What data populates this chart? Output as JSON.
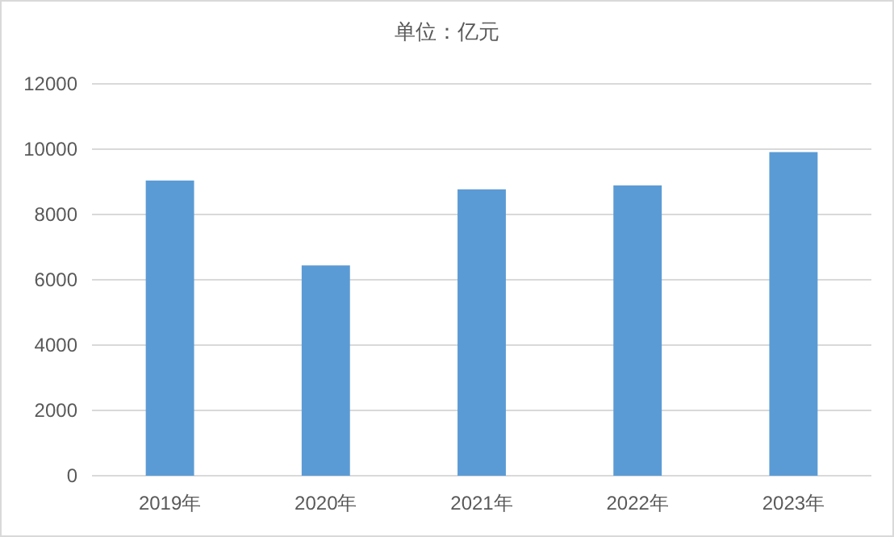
{
  "chart_data": {
    "type": "bar",
    "title": "单位：亿元",
    "categories": [
      "2019年",
      "2020年",
      "2021年",
      "2022年",
      "2023年"
    ],
    "values": [
      9040,
      6440,
      8770,
      8890,
      9910
    ],
    "color": "#5b9bd5",
    "ylim": [
      0,
      12000
    ],
    "yticks": [
      0,
      2000,
      4000,
      6000,
      8000,
      10000,
      12000
    ],
    "grid": "y"
  }
}
